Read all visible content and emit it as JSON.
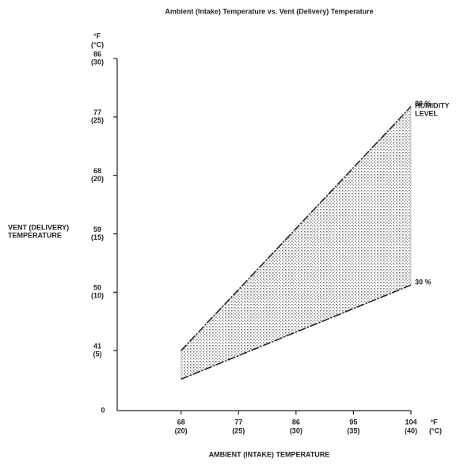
{
  "chart_data": {
    "type": "line",
    "title": "Ambient (Intake) Temperature vs. Vent (Delivery) Temperature",
    "x_label": "AMBIENT (INTAKE) TEMPERATURE",
    "y_label": [
      "VENT (DELIVERY)",
      "TEMPERATURE"
    ],
    "x_unit": [
      "°F",
      "(°C)"
    ],
    "y_unit": [
      "°F",
      "(°C)"
    ],
    "origin_label": "0",
    "legend_title": [
      "HUMIDITY",
      "LEVEL"
    ],
    "xlim": [
      58,
      104
    ],
    "ylim": [
      32,
      86
    ],
    "xticks": [
      68,
      77,
      86,
      95,
      104
    ],
    "xticks_c": [
      "(20)",
      "(25)",
      "(30)",
      "(35)",
      "(40)"
    ],
    "yticks": [
      41,
      50,
      59,
      68,
      77,
      86
    ],
    "yticks_c": [
      "(5)",
      "(10)",
      "(15)",
      "(20)",
      "(25)",
      "(30)"
    ],
    "x": [
      68,
      104
    ],
    "series": [
      {
        "name": "80 %",
        "color": "#222222",
        "values": [
          41,
          78.6
        ]
      },
      {
        "name": "30 %",
        "color": "#222222",
        "values": [
          36.6,
          51.1
        ]
      }
    ],
    "band_color": "#9a9a9a"
  }
}
